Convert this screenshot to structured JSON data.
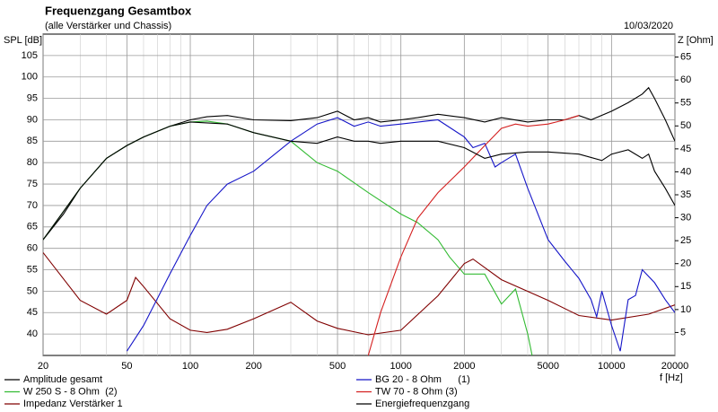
{
  "chart_data": {
    "type": "line",
    "title": "Frequenzgang Gesamtbox",
    "subtitle": "(alle Verstärker und Chassis)",
    "date": "10/03/2020",
    "y_label": "SPL [dB]",
    "y2_label": "Z [Ohm]",
    "x_label": "f [Hz]",
    "log_x": true,
    "grid": true,
    "xlim": [
      20,
      20000
    ],
    "xticks": [
      20,
      50,
      100,
      200,
      500,
      1000,
      2000,
      5000,
      10000,
      20000
    ],
    "x_minor_grid": [
      30,
      40,
      60,
      70,
      80,
      90,
      300,
      400,
      600,
      700,
      800,
      900,
      3000,
      4000,
      6000,
      7000,
      8000,
      9000
    ],
    "ylim": [
      35,
      110
    ],
    "yticks": [
      40,
      45,
      50,
      55,
      60,
      65,
      70,
      75,
      80,
      85,
      90,
      95,
      100,
      105
    ],
    "y2lim": [
      0,
      70
    ],
    "y2ticks": [
      5,
      10,
      15,
      20,
      25,
      30,
      35,
      40,
      45,
      50,
      55,
      60,
      65
    ],
    "series": [
      {
        "name": "Amplitude gesamt",
        "color": "#000000",
        "x": [
          20,
          25,
          30,
          40,
          50,
          60,
          80,
          100,
          120,
          150,
          200,
          300,
          400,
          500,
          600,
          700,
          800,
          1000,
          1200,
          1500,
          2000,
          2500,
          3000,
          4000,
          5000,
          6000,
          7000,
          8000,
          10000,
          12000,
          14000,
          15000,
          16000,
          18000,
          20000
        ],
        "values": [
          62,
          68,
          74,
          81,
          84,
          86,
          88.5,
          90,
          90.7,
          91,
          90,
          89.8,
          90.5,
          92,
          90,
          90.5,
          89.5,
          90,
          90.5,
          91.3,
          90.5,
          89.5,
          90.5,
          89.5,
          90,
          90,
          91,
          90,
          92,
          94,
          96,
          97.5,
          95,
          90,
          85
        ]
      },
      {
        "name": "W 250 S - 8 Ohm  (2)",
        "color": "#33bb33",
        "x": [
          20,
          30,
          40,
          50,
          60,
          80,
          100,
          120,
          150,
          200,
          300,
          400,
          500,
          700,
          1000,
          1200,
          1500,
          1700,
          2000,
          2500,
          3000,
          3500,
          4000,
          4200
        ],
        "values": [
          62,
          74,
          81,
          84,
          86,
          88.5,
          89.5,
          89.7,
          89,
          87,
          85,
          80,
          78,
          73,
          68,
          66,
          62,
          58,
          54,
          54,
          47,
          50.5,
          40,
          35
        ]
      },
      {
        "name": "Impedanz Verstärker 1",
        "color": "#800000",
        "axis": "y2",
        "x": [
          20,
          30,
          40,
          50,
          55,
          60,
          80,
          100,
          120,
          150,
          200,
          300,
          400,
          500,
          700,
          1000,
          1500,
          2000,
          2200,
          3000,
          5000,
          7000,
          10000,
          15000,
          20000
        ],
        "values": [
          22.4,
          12,
          9,
          12,
          17,
          15,
          8,
          5.5,
          5,
          5.7,
          8,
          11.6,
          7.5,
          5.9,
          4.5,
          5.5,
          13,
          20,
          21,
          16.5,
          12,
          8.7,
          7.7,
          9,
          11
        ]
      },
      {
        "name": "BG 20 - 8 Ohm      (1)",
        "color": "#1515c8",
        "x": [
          50,
          60,
          80,
          100,
          120,
          150,
          200,
          300,
          400,
          500,
          600,
          700,
          800,
          1000,
          1500,
          2000,
          2200,
          2500,
          2800,
          3000,
          3500,
          4000,
          5000,
          6000,
          7000,
          8000,
          8500,
          9000,
          10000,
          11000,
          12000,
          13000,
          14000,
          16000,
          18000,
          20000
        ],
        "values": [
          36,
          42,
          54,
          63,
          70,
          75,
          78,
          85,
          89,
          90.5,
          88.5,
          89.5,
          88.5,
          89,
          90,
          86,
          83.5,
          84.5,
          79,
          80,
          82,
          74,
          62,
          57,
          53,
          48,
          44,
          50,
          42,
          36,
          48,
          49,
          55,
          52,
          48,
          45
        ]
      },
      {
        "name": "TW 70 - 8 Ohm (3)",
        "color": "#d42020",
        "x": [
          700,
          800,
          1000,
          1200,
          1500,
          2000,
          2500,
          3000,
          3500,
          4000,
          5000,
          6000,
          7000
        ],
        "values": [
          35,
          45,
          58,
          67,
          73,
          79,
          84,
          88,
          89,
          88.5,
          89,
          90,
          91
        ]
      },
      {
        "name": "Energiefrequenzgang",
        "color": "#000000",
        "x": [
          20,
          30,
          40,
          50,
          60,
          80,
          100,
          150,
          200,
          300,
          400,
          500,
          600,
          700,
          800,
          1000,
          1500,
          2000,
          2500,
          3000,
          4000,
          5000,
          7000,
          9000,
          10000,
          12000,
          14000,
          15000,
          16000,
          18000,
          20000
        ],
        "values": [
          62,
          74,
          81,
          84,
          86,
          88.5,
          89.5,
          89,
          87,
          85,
          84.5,
          86,
          85,
          85,
          84.5,
          85,
          85,
          83.5,
          81,
          82,
          82.5,
          82.5,
          82,
          80.5,
          82,
          83,
          81,
          82,
          78,
          74,
          70
        ]
      }
    ]
  }
}
